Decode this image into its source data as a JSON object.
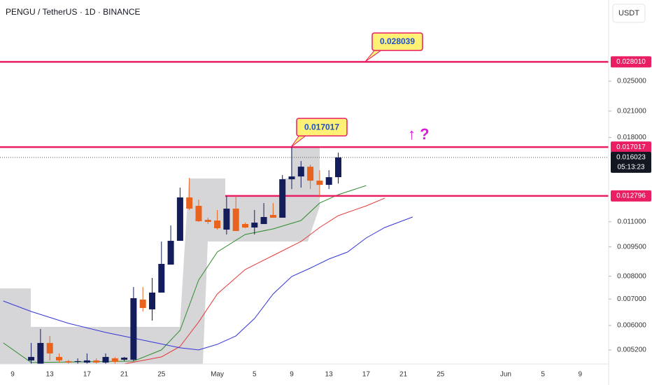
{
  "header": {
    "symbol": "PENGU / TetherUS · 1D · BINANCE",
    "currency": "USDT"
  },
  "chart_data": {
    "type": "candlestick",
    "log_scale": true,
    "up_color": "#131d5c",
    "down_color": "#e8641e",
    "categories": [
      null,
      "9",
      null,
      null,
      null,
      "13",
      null,
      null,
      null,
      "17",
      null,
      null,
      null,
      "21",
      null,
      null,
      null,
      "25",
      null,
      null,
      null,
      null,
      null,
      "May",
      null,
      null,
      null,
      "5",
      null,
      null,
      null,
      "9",
      null,
      null,
      null,
      "13",
      null,
      null,
      null,
      "17",
      null,
      null,
      null,
      "21",
      null,
      null,
      null,
      "25",
      null,
      null,
      null,
      null,
      null,
      null,
      "Jun",
      null,
      null,
      null,
      "5",
      null,
      null,
      null,
      "9",
      null,
      null
    ],
    "open": [
      null,
      null,
      null,
      0.004891,
      0.004792,
      0.005417,
      0.004992,
      0.004871,
      0.004851,
      0.004831,
      0.004891,
      0.004831,
      0.004951,
      0.004911,
      0.004911,
      0.00698,
      0.006592,
      0.007271,
      0.008563,
      0.00984,
      0.012679,
      0.012072,
      0.011124,
      0.011079,
      0.010505,
      0.011875,
      0.010855,
      0.010636,
      0.010855,
      0.011447,
      0.011262,
      0.0141,
      0.014333,
      0.015177,
      0.013986,
      0.013646,
      0.014274,
      null,
      null,
      null,
      null,
      null,
      null,
      null,
      null,
      null,
      null,
      null,
      null,
      null,
      null,
      null,
      null,
      null,
      null,
      null,
      null,
      null,
      null,
      null,
      null,
      null,
      null,
      null,
      null
    ],
    "high": [
      null,
      null,
      null,
      0.005417,
      0.005879,
      0.005643,
      0.005095,
      0.004911,
      0.004951,
      0.005095,
      0.004951,
      0.005095,
      0.004992,
      0.004992,
      0.007513,
      0.007513,
      0.007923,
      0.0098,
      0.010766,
      0.013425,
      0.014216,
      0.012524,
      0.011262,
      0.01178,
      0.012782,
      0.012782,
      0.010944,
      0.01178,
      0.01227,
      0.01227,
      0.01445,
      0.017017,
      0.015681,
      0.015364,
      0.014871,
      0.014871,
      0.01647,
      null,
      null,
      null,
      null,
      null,
      null,
      null,
      null,
      null,
      null,
      null,
      null,
      null,
      null,
      null,
      null,
      null,
      null,
      null,
      null,
      null,
      null,
      null,
      null,
      null,
      null,
      null,
      null
    ],
    "low": [
      null,
      null,
      null,
      0.004792,
      0.004792,
      0.004891,
      0.004831,
      0.004792,
      0.004792,
      0.004792,
      0.004792,
      0.004792,
      0.004792,
      0.004871,
      0.004871,
      0.006511,
      0.006174,
      0.007271,
      0.008563,
      0.00984,
      0.01178,
      0.010989,
      0.010855,
      0.010505,
      0.010209,
      0.010419,
      0.010592,
      0.010209,
      0.010855,
      0.011262,
      0.011262,
      0.013316,
      0.013425,
      0.013316,
      0.012679,
      0.013316,
      0.013759,
      null,
      null,
      null,
      null,
      null,
      null,
      null,
      null,
      null,
      null,
      null,
      null,
      null,
      null,
      null,
      null,
      null,
      null,
      null,
      null,
      null,
      null,
      null,
      null,
      null,
      null,
      null,
      null
    ],
    "close": [
      null,
      null,
      null,
      0.004992,
      0.005417,
      0.005095,
      0.004891,
      0.004831,
      0.004871,
      0.004891,
      0.004831,
      0.004992,
      0.004851,
      0.004971,
      0.007037,
      0.006646,
      0.007271,
      0.008598,
      0.00984,
      0.012679,
      0.011875,
      0.011033,
      0.010989,
      0.010592,
      0.011875,
      0.010419,
      0.010636,
      0.010944,
      0.011308,
      0.011262,
      0.0141,
      0.014333,
      0.015177,
      0.013986,
      0.013646,
      0.014274,
      0.016023,
      null,
      null,
      null,
      null,
      null,
      null,
      null,
      null,
      null,
      null,
      null,
      null,
      null,
      null,
      null,
      null,
      null,
      null,
      null,
      null,
      null,
      null,
      null,
      null,
      null,
      null,
      null,
      null
    ],
    "moving_averages": [
      {
        "color": "#2e8b2e",
        "x": [
          0,
          3,
          14,
          17,
          19,
          21,
          23,
          26,
          29,
          32,
          34,
          36,
          39
        ],
        "values": [
          0.005417,
          0.004831,
          0.004871,
          0.0052,
          0.005831,
          0.007826,
          0.009217,
          0.010209,
          0.010549,
          0.011079,
          0.01227,
          0.012888,
          0.013592
        ]
      },
      {
        "color": "#e53935",
        "x": [
          13,
          17,
          19,
          21,
          23,
          26,
          29,
          32,
          34,
          36,
          39,
          41
        ],
        "values": [
          0.004792,
          0.004992,
          0.005307,
          0.006124,
          0.007212,
          0.008322,
          0.00903,
          0.0098,
          0.010636,
          0.0114,
          0.012072,
          0.012627
        ]
      },
      {
        "color": "#3535d8",
        "x": [
          0,
          3,
          7,
          11,
          15,
          19,
          21,
          23,
          25,
          27,
          29,
          31,
          33,
          35,
          37,
          39,
          41,
          44
        ],
        "values": [
          0.006923,
          0.006511,
          0.006074,
          0.00576,
          0.005506,
          0.005264,
          0.0052,
          0.005373,
          0.005643,
          0.00625,
          0.007212,
          0.007988,
          0.00839,
          0.008848,
          0.009217,
          0.010002,
          0.010636,
          0.011308
        ]
      }
    ],
    "ylim": [
      0.00479,
      0.0402
    ],
    "yticks": [
      {
        "value": 0.0052,
        "label": "0.005200"
      },
      {
        "value": 0.006,
        "label": "0.006000"
      },
      {
        "value": 0.007,
        "label": "0.007000"
      },
      {
        "value": 0.008,
        "label": "0.008000"
      },
      {
        "value": 0.0095,
        "label": "0.009500"
      },
      {
        "value": 0.011,
        "label": "0.011000"
      },
      {
        "value": 0.018,
        "label": "0.018000"
      },
      {
        "value": 0.021,
        "label": "0.021000"
      },
      {
        "value": 0.025,
        "label": "0.025000"
      }
    ],
    "level_color": "#e91e63",
    "levels": [
      {
        "value": 0.02801,
        "label": "0.028010"
      },
      {
        "value": 0.017017,
        "label": "0.017017"
      },
      {
        "value": 0.012796,
        "label": "0.012796"
      }
    ],
    "last_price": {
      "value": 0.016023,
      "label": "0.016023",
      "countdown": "05:13:23"
    },
    "annotations": [
      {
        "value": 0.028039,
        "label": "0.028039"
      },
      {
        "value": 0.017017,
        "label": "0.017017"
      },
      {
        "text": "↑ ?"
      }
    ]
  }
}
